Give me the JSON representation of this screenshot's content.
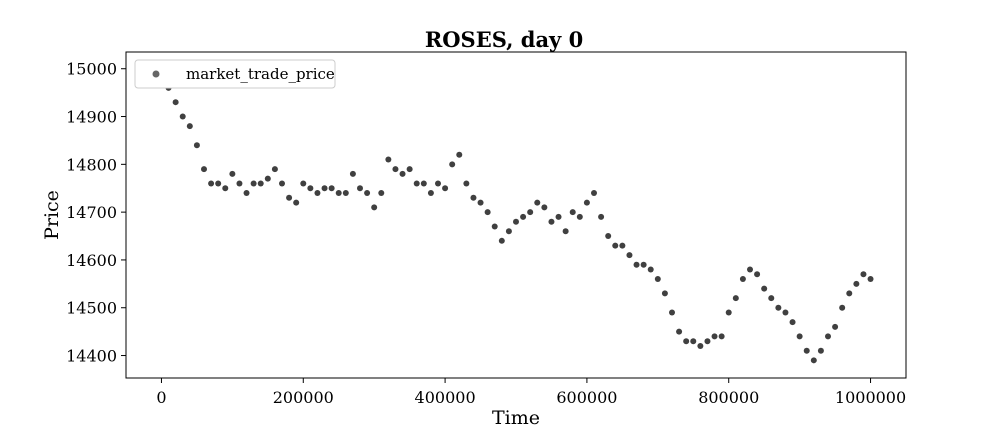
{
  "chart_data": {
    "type": "scatter",
    "title": "ROSES, day 0",
    "xlabel": "Time",
    "ylabel": "Price",
    "xlim": [
      -50000,
      1050000
    ],
    "ylim": [
      14353,
      15035
    ],
    "xticks": [
      0,
      200000,
      400000,
      600000,
      800000,
      1000000
    ],
    "yticks": [
      14400,
      14500,
      14600,
      14700,
      14800,
      14900,
      15000
    ],
    "grid": false,
    "legend_position": "top-left",
    "series": [
      {
        "name": "market_trade_price",
        "color": "#000000",
        "x": [
          0,
          10000,
          20000,
          30000,
          40000,
          50000,
          60000,
          70000,
          80000,
          90000,
          100000,
          110000,
          120000,
          130000,
          140000,
          150000,
          160000,
          170000,
          180000,
          190000,
          200000,
          210000,
          220000,
          230000,
          240000,
          250000,
          260000,
          270000,
          280000,
          290000,
          300000,
          310000,
          320000,
          330000,
          340000,
          350000,
          360000,
          370000,
          380000,
          390000,
          400000,
          410000,
          420000,
          430000,
          440000,
          450000,
          460000,
          470000,
          480000,
          490000,
          500000,
          510000,
          520000,
          530000,
          540000,
          550000,
          560000,
          570000,
          580000,
          590000,
          600000,
          610000,
          620000,
          630000,
          640000,
          650000,
          660000,
          670000,
          680000,
          690000,
          700000,
          710000,
          720000,
          730000,
          740000,
          750000,
          760000,
          770000,
          780000,
          790000,
          800000,
          810000,
          820000,
          830000,
          840000,
          850000,
          860000,
          870000,
          880000,
          890000,
          900000,
          910000,
          920000,
          930000,
          940000,
          950000,
          960000,
          970000,
          980000,
          990000,
          1000000
        ],
        "y": [
          15000,
          14960,
          14930,
          14900,
          14880,
          14840,
          14790,
          14760,
          14760,
          14750,
          14780,
          14760,
          14740,
          14760,
          14760,
          14770,
          14790,
          14760,
          14730,
          14720,
          14760,
          14750,
          14740,
          14750,
          14750,
          14740,
          14740,
          14780,
          14750,
          14740,
          14710,
          14740,
          14810,
          14790,
          14780,
          14790,
          14760,
          14760,
          14740,
          14760,
          14750,
          14800,
          14820,
          14760,
          14730,
          14720,
          14700,
          14670,
          14640,
          14660,
          14680,
          14690,
          14700,
          14720,
          14710,
          14680,
          14690,
          14660,
          14700,
          14690,
          14720,
          14740,
          14690,
          14650,
          14630,
          14630,
          14610,
          14590,
          14590,
          14580,
          14560,
          14530,
          14490,
          14450,
          14430,
          14430,
          14420,
          14430,
          14440,
          14440,
          14490,
          14520,
          14560,
          14580,
          14570,
          14540,
          14520,
          14500,
          14490,
          14470,
          14440,
          14410,
          14390,
          14410,
          14440,
          14460,
          14500,
          14530,
          14550,
          14570,
          14560
        ]
      }
    ]
  }
}
